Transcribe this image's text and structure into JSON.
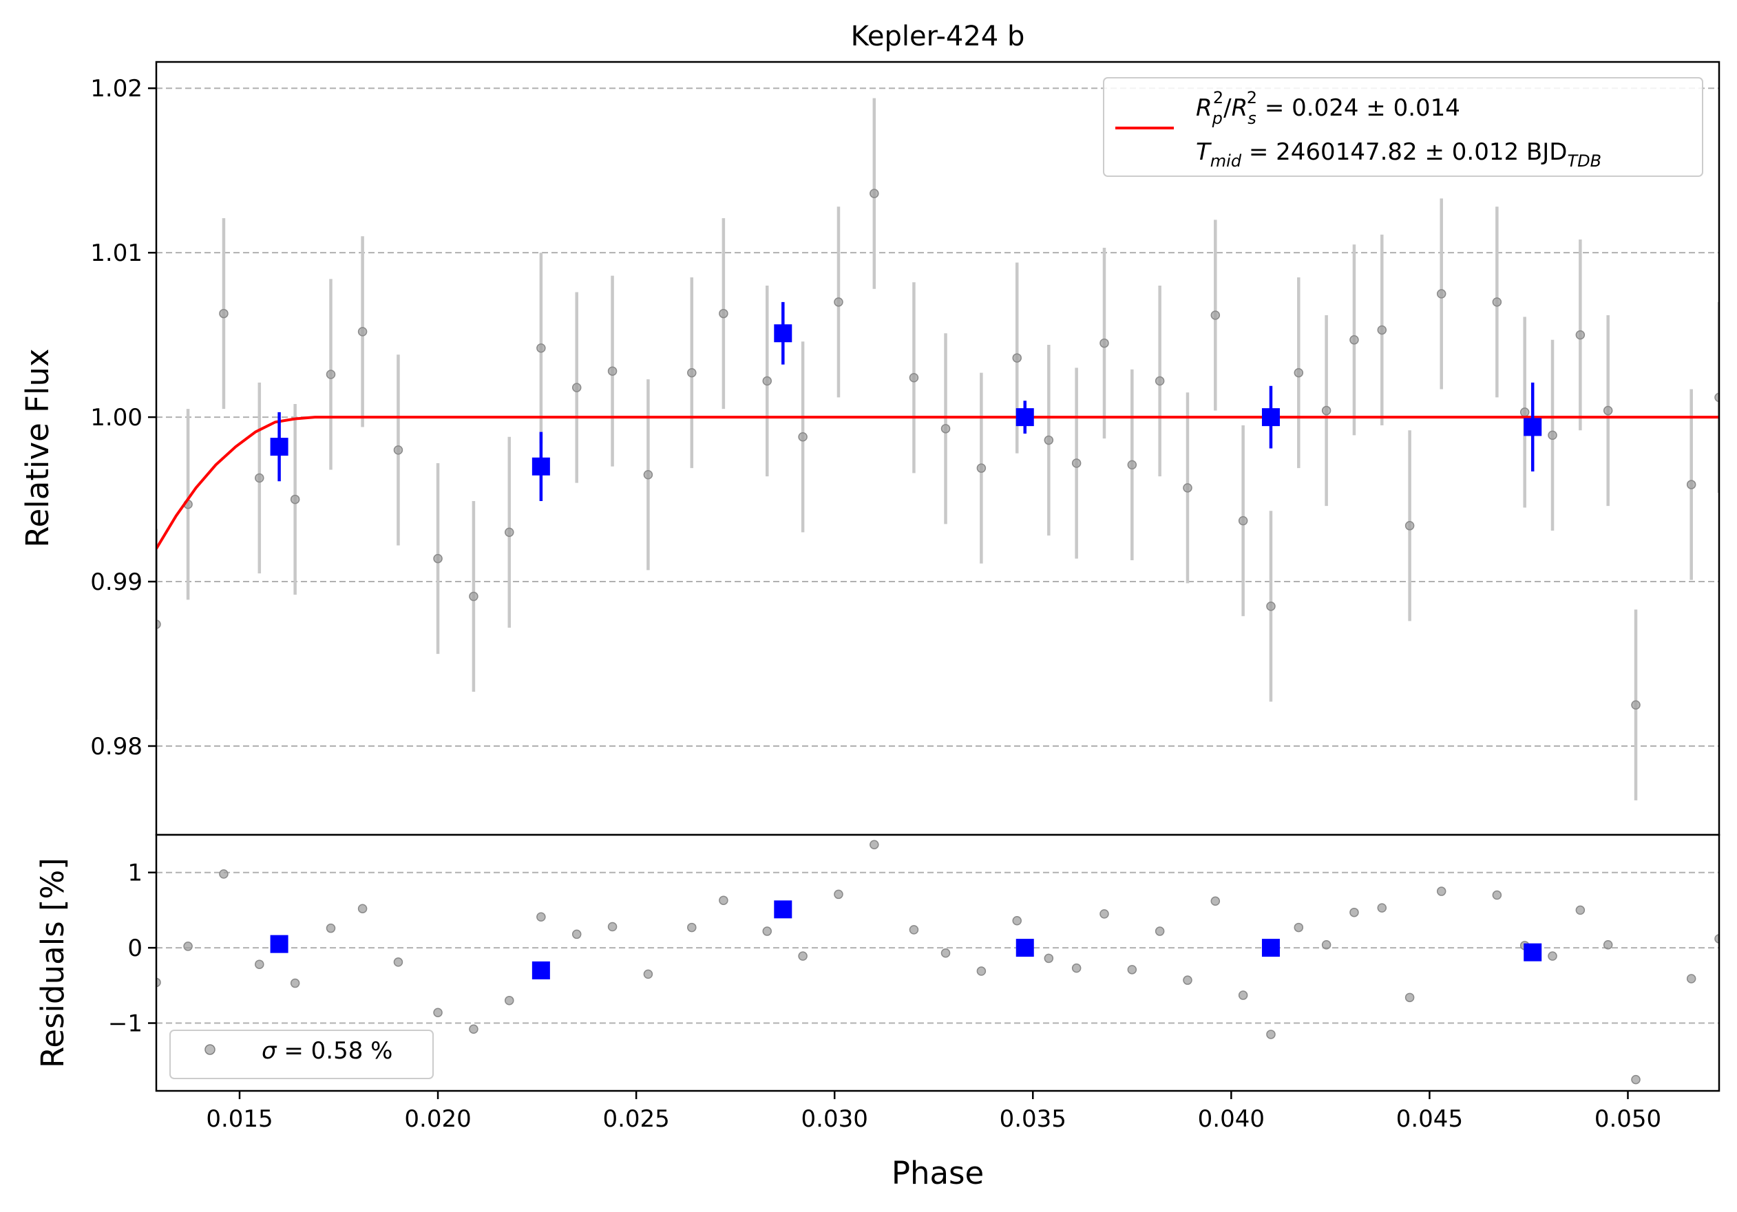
{
  "chart_data": [
    {
      "type": "scatter",
      "title": "Kepler-424 b",
      "xlabel": "",
      "ylabel": "Relative Flux",
      "xlim": [
        0.0129,
        0.0523
      ],
      "ylim": [
        0.9746,
        1.0216
      ],
      "yticks": [
        0.98,
        0.99,
        1.0,
        1.01,
        1.02
      ],
      "ytick_labels": [
        "0.98",
        "0.99",
        "1.00",
        "1.01",
        "1.02"
      ],
      "grid": "horizontal dashed",
      "legend_placement": "top-right",
      "legend": {
        "line1": {
          "sym": "R",
          "sub1": "p",
          "sym2": "R",
          "sub2": "s",
          "sup": "2",
          "value": " = 0.024 ± 0.014"
        },
        "line2": {
          "sym": "T",
          "sub": "mid",
          "value": " = 2460147.82 ± 0.012 BJD",
          "unit_sub": "TDB"
        }
      },
      "series": [
        {
          "name": "raw",
          "color": "#a0a0a0",
          "x": [
            0.0129,
            0.0137,
            0.0146,
            0.0155,
            0.0164,
            0.0173,
            0.0181,
            0.019,
            0.02,
            0.0209,
            0.0218,
            0.0226,
            0.0235,
            0.0244,
            0.0253,
            0.0264,
            0.0272,
            0.0283,
            0.0292,
            0.0301,
            0.031,
            0.032,
            0.0328,
            0.0337,
            0.0346,
            0.0354,
            0.0361,
            0.0368,
            0.0375,
            0.0382,
            0.0389,
            0.0396,
            0.0403,
            0.041,
            0.0417,
            0.0424,
            0.0431,
            0.0438,
            0.0445,
            0.0453,
            0.0467,
            0.0474,
            0.0481,
            0.0488,
            0.0495,
            0.0502,
            0.0516,
            0.0523
          ],
          "y": [
            0.9874,
            0.9947,
            1.0063,
            0.9963,
            0.995,
            1.0026,
            1.0052,
            0.998,
            0.9914,
            0.9891,
            0.993,
            1.0042,
            1.0018,
            1.0028,
            0.9965,
            1.0027,
            1.0063,
            1.0022,
            0.9988,
            1.007,
            1.0136,
            1.0024,
            0.9993,
            0.9969,
            1.0036,
            0.9986,
            0.9972,
            1.0045,
            0.9971,
            1.0022,
            0.9957,
            1.0062,
            0.9937,
            0.9885,
            1.0027,
            1.0004,
            1.0047,
            1.0053,
            0.9934,
            1.0075,
            1.007,
            1.0003,
            0.9989,
            1.005,
            1.0004,
            0.9825,
            0.9959,
            1.0012
          ],
          "yerr": [
            0.0058,
            0.0058,
            0.0058,
            0.0058,
            0.0058,
            0.0058,
            0.0058,
            0.0058,
            0.0058,
            0.0058,
            0.0058,
            0.0058,
            0.0058,
            0.0058,
            0.0058,
            0.0058,
            0.0058,
            0.0058,
            0.0058,
            0.0058,
            0.0058,
            0.0058,
            0.0058,
            0.0058,
            0.0058,
            0.0058,
            0.0058,
            0.0058,
            0.0058,
            0.0058,
            0.0058,
            0.0058,
            0.0058,
            0.0058,
            0.0058,
            0.0058,
            0.0058,
            0.0058,
            0.0058,
            0.0058,
            0.0058,
            0.0058,
            0.0058,
            0.0058,
            0.0058,
            0.0058,
            0.0058,
            0.0058
          ]
        },
        {
          "name": "binned",
          "color": "#0000ff",
          "x": [
            0.016,
            0.0226,
            0.0287,
            0.0348,
            0.041,
            0.0476
          ],
          "y": [
            0.9982,
            0.997,
            1.0051,
            1.0,
            1.0,
            0.9994
          ],
          "yerr": [
            0.0021,
            0.0021,
            0.0019,
            0.001,
            0.0019,
            0.0027
          ]
        },
        {
          "name": "model",
          "color": "#ff0000",
          "type": "line",
          "x": [
            0.0129,
            0.0134,
            0.0139,
            0.0144,
            0.0149,
            0.0154,
            0.0159,
            0.0164,
            0.0169,
            0.0523
          ],
          "y": [
            0.992,
            0.994,
            0.9957,
            0.9971,
            0.9982,
            0.9991,
            0.9997,
            0.9999,
            1.0,
            1.0
          ]
        }
      ]
    },
    {
      "type": "scatter",
      "title": "",
      "xlabel": "Phase",
      "ylabel": "Residuals [%]",
      "xlim": [
        0.0129,
        0.0523
      ],
      "ylim": [
        -1.9,
        1.5
      ],
      "xticks": [
        0.015,
        0.02,
        0.025,
        0.03,
        0.035,
        0.04,
        0.045,
        0.05
      ],
      "xtick_labels": [
        "0.015",
        "0.020",
        "0.025",
        "0.030",
        "0.035",
        "0.040",
        "0.045",
        "0.050"
      ],
      "yticks": [
        -1,
        0,
        1
      ],
      "ytick_labels": [
        "−1",
        "0",
        "1"
      ],
      "grid": "horizontal dashed",
      "legend_placement": "lower-left",
      "legend": {
        "sym": "σ",
        "value": " = 0.58 %"
      },
      "series": [
        {
          "name": "residuals",
          "color": "#a0a0a0",
          "x": [
            0.0129,
            0.0137,
            0.0146,
            0.0155,
            0.0164,
            0.0173,
            0.0181,
            0.019,
            0.02,
            0.0209,
            0.0218,
            0.0226,
            0.0235,
            0.0244,
            0.0253,
            0.0264,
            0.0272,
            0.0283,
            0.0292,
            0.0301,
            0.031,
            0.032,
            0.0328,
            0.0337,
            0.0346,
            0.0354,
            0.0361,
            0.0368,
            0.0375,
            0.0382,
            0.0389,
            0.0396,
            0.0403,
            0.041,
            0.0417,
            0.0424,
            0.0431,
            0.0438,
            0.0445,
            0.0453,
            0.0467,
            0.0474,
            0.0481,
            0.0488,
            0.0495,
            0.0502,
            0.0516,
            0.0523
          ],
          "y": [
            -0.46,
            0.02,
            0.98,
            -0.22,
            -0.47,
            0.26,
            0.52,
            -0.19,
            -0.86,
            -1.08,
            -0.7,
            0.41,
            0.18,
            0.28,
            -0.35,
            0.27,
            0.63,
            0.22,
            -0.11,
            0.71,
            1.37,
            0.24,
            -0.07,
            -0.31,
            0.36,
            -0.14,
            -0.27,
            0.45,
            -0.29,
            0.22,
            -0.43,
            0.62,
            -0.63,
            -1.15,
            0.27,
            0.04,
            0.47,
            0.53,
            -0.66,
            0.75,
            0.7,
            0.03,
            -0.11,
            0.5,
            0.04,
            -1.75,
            -0.41,
            0.12
          ]
        },
        {
          "name": "binned",
          "color": "#0000ff",
          "x": [
            0.016,
            0.0226,
            0.0287,
            0.0348,
            0.041,
            0.0476
          ],
          "y": [
            0.05,
            -0.3,
            0.51,
            0.0,
            0.0,
            -0.06
          ]
        }
      ]
    }
  ]
}
